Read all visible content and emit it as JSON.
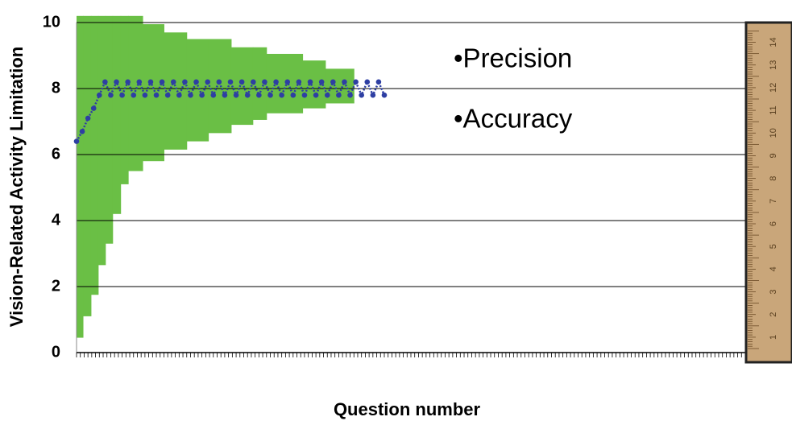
{
  "chart_data": {
    "type": "band-line",
    "x_label": "Question number",
    "y_label": "Vision-Related Activity Limitation",
    "annotations": [
      "•Precision",
      "•Accuracy"
    ],
    "xlim": [
      0,
      176
    ],
    "ylim": [
      0,
      10
    ],
    "yticks": [
      0,
      2,
      4,
      6,
      8,
      10
    ],
    "xticks": [
      0,
      1,
      2,
      3,
      4,
      5,
      6,
      7,
      8,
      9,
      10,
      11,
      12,
      13,
      14,
      15,
      16,
      17,
      18,
      19,
      20,
      21,
      22,
      23,
      24,
      25,
      26,
      27,
      28,
      29,
      30,
      31,
      32,
      33,
      34,
      35,
      36,
      37,
      38,
      39,
      40,
      41,
      42,
      43,
      44,
      45,
      46,
      47,
      48,
      49,
      50,
      51,
      52,
      53,
      54,
      55,
      56,
      57,
      58,
      59,
      60,
      61,
      62,
      63,
      64,
      65,
      66,
      67,
      68,
      69,
      70,
      71,
      72,
      73,
      74,
      75,
      76,
      77,
      78,
      79,
      80,
      81,
      82,
      83,
      84,
      85,
      86,
      87,
      88,
      89,
      90,
      91,
      92,
      93,
      94,
      95,
      96,
      97,
      98,
      99,
      100,
      101,
      102,
      103,
      104,
      105,
      106,
      107,
      108,
      109,
      110,
      111,
      112,
      113,
      114,
      115,
      116,
      117,
      118,
      119,
      120,
      121,
      122,
      123,
      124,
      125,
      126,
      127,
      128,
      129,
      130,
      131,
      132,
      133,
      134,
      135,
      136,
      137,
      138,
      139,
      140,
      141,
      142,
      143,
      144,
      145,
      146,
      147,
      148,
      149,
      150,
      151,
      152,
      153,
      154,
      155,
      156,
      157,
      158,
      159,
      160,
      161,
      162,
      163,
      164,
      165,
      166,
      167,
      168,
      169,
      170,
      171,
      172,
      173,
      174,
      175
    ],
    "grid": true,
    "band": {
      "color": "#6abf45",
      "edges": [
        0,
        1.7,
        3.8,
        5.7,
        7.6,
        9.5,
        11.6,
        13.6,
        17.4,
        23,
        29,
        34.7,
        40.7,
        46.4,
        50,
        59.5,
        65.5,
        73
      ],
      "upper": [
        10.2,
        10.2,
        10.2,
        10.2,
        10.2,
        10.2,
        10.2,
        10.2,
        9.95,
        9.7,
        9.5,
        9.5,
        9.25,
        9.25,
        9.05,
        8.85,
        8.6
      ],
      "lower": [
        0.45,
        1.1,
        1.75,
        2.65,
        3.3,
        4.2,
        5.1,
        5.5,
        5.8,
        6.15,
        6.4,
        6.65,
        6.9,
        7.05,
        7.25,
        7.4,
        7.55
      ]
    },
    "series": [
      {
        "color": "#2e3fa3",
        "x": [
          0,
          1.5,
          3,
          4.5,
          6,
          7.5,
          9,
          10.5,
          12,
          13.5,
          15,
          16.5,
          18,
          19.5,
          21,
          22.5,
          24,
          25.5,
          27,
          28.5,
          30,
          31.5,
          33,
          34.5,
          36,
          37.5,
          39,
          40.5,
          42,
          43.5,
          45,
          46.5,
          48,
          49.5,
          51,
          52.5,
          54,
          55.5,
          57,
          58.5,
          60,
          61.5,
          63,
          64.5,
          66,
          67.5,
          69,
          70.5,
          72,
          73.5,
          75,
          76.5,
          78,
          79.5,
          81
        ],
        "values": [
          6.4,
          6.7,
          7.1,
          7.4,
          7.8,
          8.2,
          7.8,
          8.2,
          7.8,
          8.2,
          7.8,
          8.2,
          7.8,
          8.2,
          7.8,
          8.2,
          7.8,
          8.2,
          7.8,
          8.2,
          7.8,
          8.2,
          7.8,
          8.2,
          7.8,
          8.2,
          7.8,
          8.2,
          7.8,
          8.2,
          7.8,
          8.2,
          7.8,
          8.2,
          7.8,
          8.2,
          7.8,
          8.2,
          7.8,
          8.2,
          7.8,
          8.2,
          7.8,
          8.2,
          7.8,
          8.2,
          7.8,
          8.2,
          7.8,
          8.2,
          7.8,
          8.2,
          7.8,
          8.2,
          7.8
        ]
      }
    ],
    "ruler_labels": [
      1,
      2,
      3,
      4,
      5,
      6,
      7,
      8,
      9,
      10,
      11,
      12,
      13,
      14
    ]
  }
}
